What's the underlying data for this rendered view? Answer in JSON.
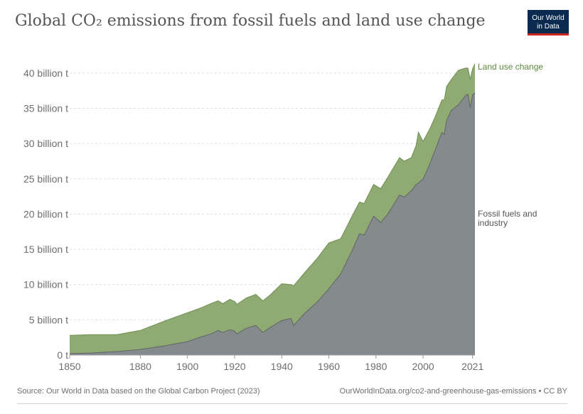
{
  "header": {
    "title": "Global CO₂ emissions from fossil fuels and land use change",
    "logo_line1": "Our World",
    "logo_line2": "in Data"
  },
  "footer": {
    "source": "Source: Our World in Data based on the Global Carbon Project (2023)",
    "link": "OurWorldInData.org/co2-and-greenhouse-gas-emissions • CC BY"
  },
  "colors": {
    "land": "#8fab73",
    "land_line": "#6d9050",
    "fossil": "#858a8c",
    "fossil_line": "#5f6466",
    "land_label": "#5d8a3c",
    "fossil_label": "#555555"
  },
  "chart_data": {
    "type": "area",
    "stacked": true,
    "title": "Global CO₂ emissions from fossil fuels and land use change",
    "xlabel": "",
    "ylabel": "",
    "xlim": [
      1850,
      2022
    ],
    "ylim": [
      0,
      42
    ],
    "yticks": [
      0,
      5,
      10,
      15,
      20,
      25,
      30,
      35,
      40
    ],
    "ytick_labels": [
      "0 t",
      "5 billion t",
      "10 billion t",
      "15 billion t",
      "20 billion t",
      "25 billion t",
      "30 billion t",
      "35 billion t",
      "40 billion t"
    ],
    "xticks": [
      1850,
      1880,
      1900,
      1920,
      1940,
      1960,
      1980,
      2000,
      2021
    ],
    "xtick_labels": [
      "1850",
      "1880",
      "1900",
      "1920",
      "1940",
      "1960",
      "1980",
      "2000",
      "2021"
    ],
    "x": [
      1850,
      1860,
      1870,
      1880,
      1890,
      1900,
      1905,
      1910,
      1913,
      1915,
      1918,
      1920,
      1921,
      1925,
      1929,
      1932,
      1935,
      1940,
      1944,
      1945,
      1950,
      1955,
      1960,
      1965,
      1970,
      1973,
      1975,
      1979,
      1980,
      1982,
      1985,
      1990,
      1992,
      1995,
      1997,
      1998,
      2000,
      2003,
      2005,
      2008,
      2009,
      2010,
      2012,
      2015,
      2018,
      2019,
      2020,
      2021,
      2022
    ],
    "series": [
      {
        "name": "Fossil fuels and industry",
        "label": "Fossil fuels and\nindustry",
        "values": [
          0.2,
          0.3,
          0.5,
          0.8,
          1.3,
          1.9,
          2.5,
          3.0,
          3.5,
          3.2,
          3.6,
          3.4,
          3.0,
          3.8,
          4.2,
          3.2,
          3.9,
          4.9,
          5.2,
          4.2,
          6.0,
          7.5,
          9.4,
          11.5,
          14.9,
          17.2,
          17.0,
          19.7,
          19.4,
          18.8,
          20.0,
          22.7,
          22.4,
          23.3,
          24.2,
          24.4,
          25.0,
          27.2,
          29.0,
          31.6,
          31.3,
          33.3,
          34.7,
          35.5,
          36.8,
          37.0,
          35.1,
          36.9,
          37.2
        ]
      },
      {
        "name": "Land use change",
        "label": "Land use change",
        "values": [
          2.6,
          2.6,
          2.4,
          2.7,
          3.5,
          4.1,
          4.1,
          4.3,
          4.2,
          4.1,
          4.3,
          4.2,
          4.2,
          4.3,
          4.4,
          4.5,
          4.6,
          5.2,
          4.8,
          5.6,
          5.8,
          6.2,
          6.5,
          5.0,
          4.9,
          4.5,
          4.5,
          4.5,
          4.6,
          4.8,
          5.2,
          5.3,
          5.1,
          4.7,
          5.5,
          7.2,
          5.3,
          5.0,
          4.7,
          4.6,
          4.9,
          4.8,
          4.4,
          4.9,
          3.9,
          3.7,
          4.0,
          3.7,
          4.1
        ]
      }
    ],
    "grid": true
  }
}
